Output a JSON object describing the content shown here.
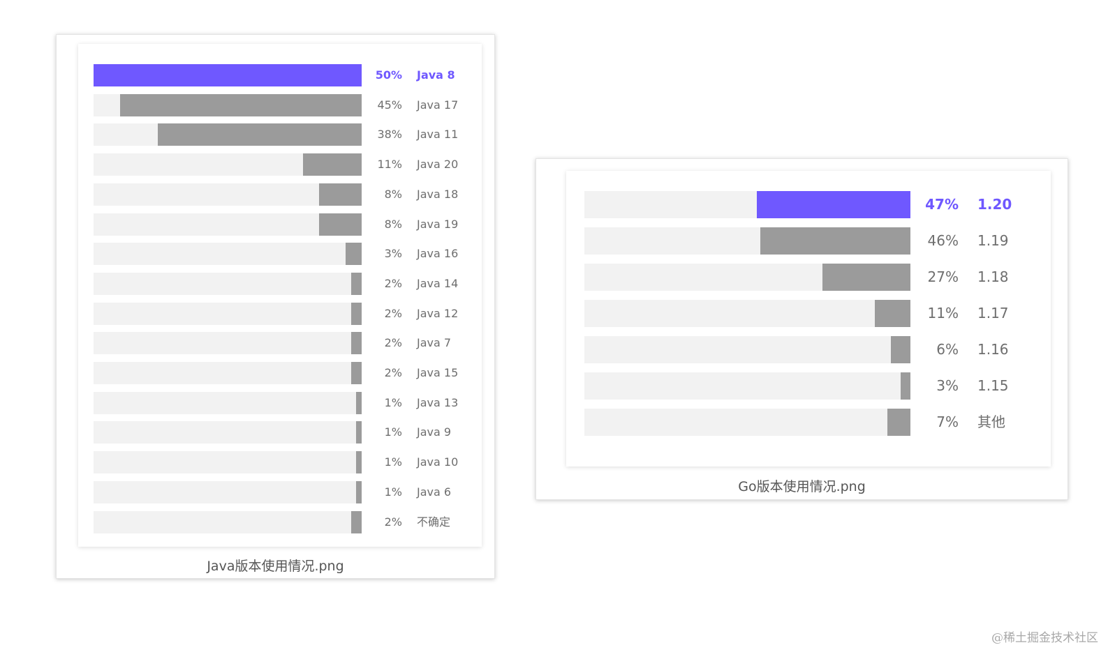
{
  "chart_data": [
    {
      "type": "bar",
      "orientation": "horizontal",
      "caption": "Java版本使用情况.png",
      "highlight_color": "#6f58ff",
      "bar_color": "#9b9b9b",
      "track_color": "#f2f2f2",
      "xlim": [
        0,
        100
      ],
      "categories": [
        "Java 8",
        "Java 17",
        "Java 11",
        "Java 20",
        "Java 18",
        "Java 19",
        "Java 16",
        "Java 14",
        "Java 12",
        "Java 7",
        "Java 15",
        "Java 13",
        "Java 9",
        "Java 10",
        "Java 6",
        "不确定"
      ],
      "values": [
        50,
        45,
        38,
        11,
        8,
        8,
        3,
        2,
        2,
        2,
        2,
        1,
        1,
        1,
        1,
        2
      ],
      "value_labels": [
        "50%",
        "45%",
        "38%",
        "11%",
        "8%",
        "8%",
        "3%",
        "2%",
        "2%",
        "2%",
        "2%",
        "1%",
        "1%",
        "1%",
        "1%",
        "2%"
      ],
      "highlight_index": 0
    },
    {
      "type": "bar",
      "orientation": "horizontal",
      "caption": "Go版本使用情况.png",
      "highlight_color": "#6f58ff",
      "bar_color": "#9b9b9b",
      "track_color": "#f2f2f2",
      "xlim": [
        0,
        100
      ],
      "categories": [
        "1.20",
        "1.19",
        "1.18",
        "1.17",
        "1.16",
        "1.15",
        "其他"
      ],
      "values": [
        47,
        46,
        27,
        11,
        6,
        3,
        7
      ],
      "value_labels": [
        "47%",
        "46%",
        "27%",
        "11%",
        "6%",
        "3%",
        "7%"
      ],
      "highlight_index": 0
    }
  ],
  "watermark": "@稀土掘金技术社区"
}
